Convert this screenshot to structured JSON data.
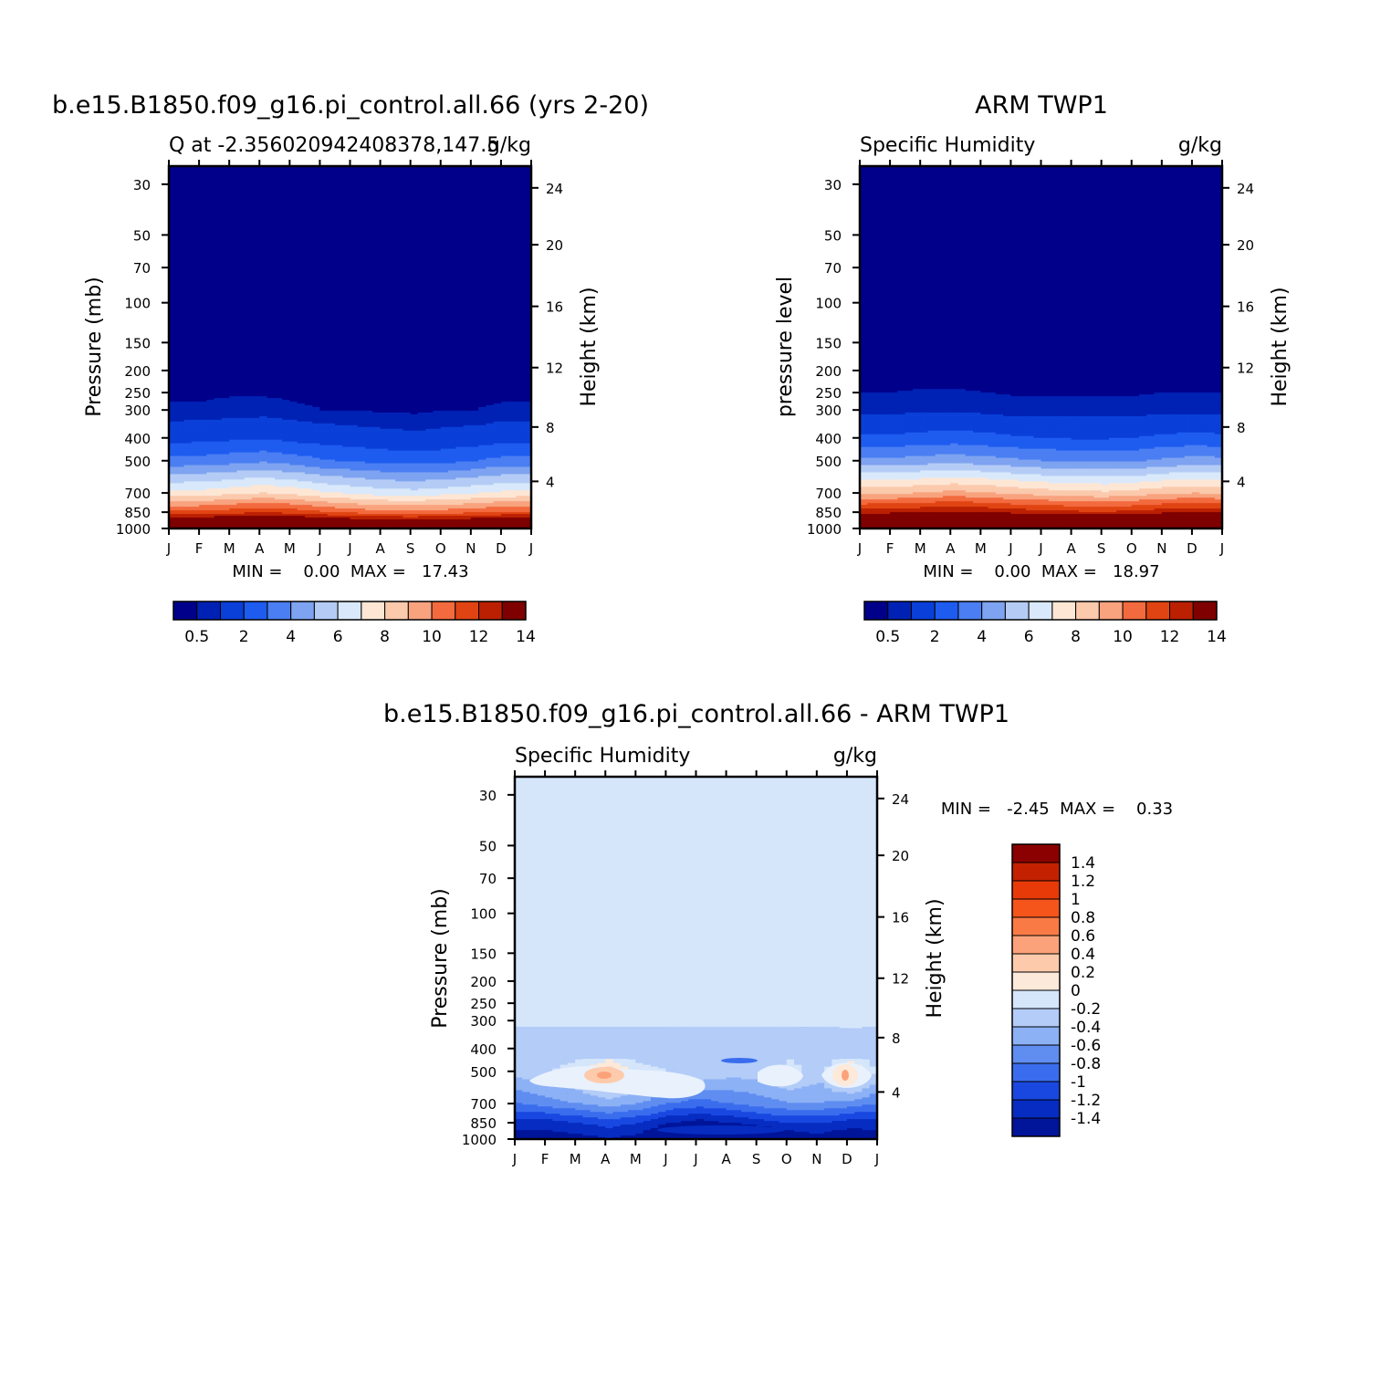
{
  "months": [
    "J",
    "F",
    "M",
    "A",
    "M",
    "J",
    "J",
    "A",
    "S",
    "O",
    "N",
    "D",
    "J"
  ],
  "pressure_ticks": [
    "30",
    "50",
    "70",
    "100",
    "150",
    "200",
    "250",
    "300",
    "400",
    "500",
    "700",
    "850",
    "1000"
  ],
  "height_ticks": [
    "24",
    "20",
    "16",
    "12",
    "8",
    "4"
  ],
  "panels": [
    {
      "title": "b.e15.B1850.f09_g16.pi_control.all.66 (yrs 2-20)",
      "left_label": "Q at -2.356020942408378,147.5",
      "right_label": "g/kg",
      "ylabel_left": "Pressure (mb)",
      "ylabel_right": "Height (km)",
      "stats_label": "MIN =    0.00  MAX =   17.43"
    },
    {
      "title": "ARM TWP1",
      "left_label": "Specific Humidity",
      "right_label": "g/kg",
      "ylabel_left": "pressure level",
      "ylabel_right": "Height (km)",
      "stats_label": "MIN =    0.00  MAX =   18.97"
    },
    {
      "title": "b.e15.B1850.f09_g16.pi_control.all.66 - ARM TWP1",
      "left_label": "Specific Humidity",
      "right_label": "g/kg",
      "ylabel_left": "Pressure (mb)",
      "ylabel_right": "Height (km)",
      "stats_label": "MIN =   -2.45  MAX =    0.33"
    }
  ],
  "colorbar_seq": {
    "labels": [
      "0.5",
      "2",
      "4",
      "6",
      "8",
      "10",
      "12",
      "14"
    ],
    "colors": [
      "#00008b",
      "#0022b4",
      "#0a3fd8",
      "#1e5cf0",
      "#4a7ef2",
      "#7ea3f0",
      "#b4ccf5",
      "#d9e9fb",
      "#fde6d4",
      "#fbc9ac",
      "#f8a27e",
      "#f26a3e",
      "#e04412",
      "#bb2003",
      "#7f0000"
    ]
  },
  "colorbar_diff": {
    "labels": [
      "1.4",
      "1.2",
      "1",
      "0.8",
      "0.6",
      "0.4",
      "0.2",
      "0",
      "-0.2",
      "-0.4",
      "-0.6",
      "-0.8",
      "-1",
      "-1.2",
      "-1.4"
    ],
    "colors": [
      "#8b0000",
      "#c32100",
      "#e83a08",
      "#f5541b",
      "#fa7a46",
      "#fca27a",
      "#fdcbac",
      "#fde9d9",
      "#d5e6fb",
      "#b3ccf8",
      "#8cb1f5",
      "#5f8df0",
      "#3a6ded",
      "#1948e1",
      "#062cc1",
      "#00159a"
    ]
  },
  "chart_data": [
    {
      "type": "heatmap",
      "title": "b.e15.B1850.f09_g16.pi_control.all.66 (yrs 2-20)",
      "x": [
        "J",
        "F",
        "M",
        "A",
        "M",
        "J",
        "J",
        "A",
        "S",
        "O",
        "N",
        "D",
        "J"
      ],
      "ylabel": "Pressure (mb)",
      "ylabel_right": "Height (km)",
      "units": "g/kg",
      "levels_mb": [
        1000,
        850,
        700,
        500,
        400,
        300
      ],
      "values": [
        [
          16.8,
          16.9,
          17.2,
          17.4,
          17.2,
          16.9,
          16.6,
          16.4,
          16.3,
          16.4,
          16.6,
          16.8,
          16.8
        ],
        [
          11.2,
          11.3,
          11.6,
          11.9,
          11.6,
          11.1,
          10.7,
          10.4,
          10.3,
          10.5,
          10.8,
          11.1,
          11.2
        ],
        [
          7.3,
          7.4,
          7.7,
          8.0,
          7.7,
          7.2,
          6.8,
          6.5,
          6.4,
          6.6,
          6.9,
          7.2,
          7.3
        ],
        [
          3.3,
          3.4,
          3.6,
          3.8,
          3.5,
          3.1,
          2.9,
          2.7,
          2.6,
          2.7,
          3.0,
          3.3,
          3.3
        ],
        [
          1.6,
          1.7,
          1.8,
          1.9,
          1.7,
          1.5,
          1.4,
          1.3,
          1.2,
          1.3,
          1.4,
          1.6,
          1.6
        ],
        [
          0.6,
          0.6,
          0.7,
          0.7,
          0.6,
          0.5,
          0.5,
          0.4,
          0.4,
          0.5,
          0.5,
          0.6,
          0.6
        ]
      ],
      "min": 0.0,
      "max": 17.43
    },
    {
      "type": "heatmap",
      "title": "ARM TWP1",
      "x": [
        "J",
        "F",
        "M",
        "A",
        "M",
        "J",
        "J",
        "A",
        "S",
        "O",
        "N",
        "D",
        "J"
      ],
      "ylabel": "pressure level",
      "ylabel_right": "Height (km)",
      "units": "g/kg",
      "levels_mb": [
        1000,
        850,
        700,
        500,
        400,
        300
      ],
      "values": [
        [
          18.4,
          18.5,
          18.8,
          18.9,
          18.7,
          18.5,
          18.3,
          18.1,
          18.0,
          18.2,
          18.6,
          18.9,
          18.4
        ],
        [
          12.6,
          12.7,
          12.9,
          13.1,
          12.9,
          12.6,
          12.4,
          12.2,
          12.1,
          12.3,
          12.7,
          12.9,
          12.6
        ],
        [
          8.8,
          8.8,
          9.1,
          9.3,
          9.1,
          8.8,
          8.5,
          8.3,
          8.2,
          8.4,
          8.8,
          9.0,
          8.8
        ],
        [
          4.3,
          4.3,
          4.5,
          4.6,
          4.4,
          4.2,
          4.0,
          3.9,
          3.8,
          3.9,
          4.2,
          4.4,
          4.3
        ],
        [
          2.2,
          2.2,
          2.3,
          2.4,
          2.3,
          2.1,
          2.0,
          1.9,
          1.9,
          2.0,
          2.2,
          2.3,
          2.2
        ],
        [
          0.8,
          0.8,
          0.9,
          0.9,
          0.8,
          0.7,
          0.7,
          0.7,
          0.7,
          0.7,
          0.8,
          0.8,
          0.8
        ]
      ],
      "min": 0.0,
      "max": 18.97
    },
    {
      "type": "heatmap",
      "title": "b.e15.B1850.f09_g16.pi_control.all.66 - ARM TWP1",
      "x": [
        "J",
        "F",
        "M",
        "A",
        "M",
        "J",
        "J",
        "A",
        "S",
        "O",
        "N",
        "D",
        "J"
      ],
      "ylabel": "Pressure (mb)",
      "ylabel_right": "Height (km)",
      "units": "g/kg",
      "levels_mb": [
        1000,
        850,
        700,
        500,
        400,
        300
      ],
      "values": [
        [
          -1.5,
          -1.5,
          -1.5,
          -1.4,
          -1.5,
          -1.7,
          -2.2,
          -2.0,
          -1.8,
          -1.6,
          -1.5,
          -1.6,
          -1.5
        ],
        [
          -1.3,
          -1.3,
          -1.2,
          -1.1,
          -1.2,
          -1.4,
          -1.5,
          -1.4,
          -1.3,
          -1.2,
          -1.2,
          -1.3,
          -1.3
        ],
        [
          -0.8,
          -0.7,
          -0.6,
          -0.5,
          -0.6,
          -0.8,
          -0.9,
          -0.8,
          -0.7,
          -0.6,
          -0.6,
          -0.7,
          -0.8
        ],
        [
          -0.3,
          -0.2,
          -0.1,
          0.3,
          -0.1,
          -0.2,
          -0.2,
          -0.3,
          -0.3,
          -0.1,
          -0.3,
          0.3,
          -0.3
        ],
        [
          -0.4,
          -0.4,
          -0.3,
          -0.3,
          -0.4,
          -0.4,
          -0.5,
          -0.4,
          -0.4,
          -0.3,
          -0.4,
          -0.4,
          -0.4
        ],
        [
          -0.2,
          -0.2,
          -0.2,
          -0.2,
          -0.2,
          -0.2,
          -0.3,
          -0.2,
          -0.2,
          -0.2,
          -0.2,
          -0.1,
          -0.2
        ]
      ],
      "min": -2.45,
      "max": 0.33
    }
  ]
}
